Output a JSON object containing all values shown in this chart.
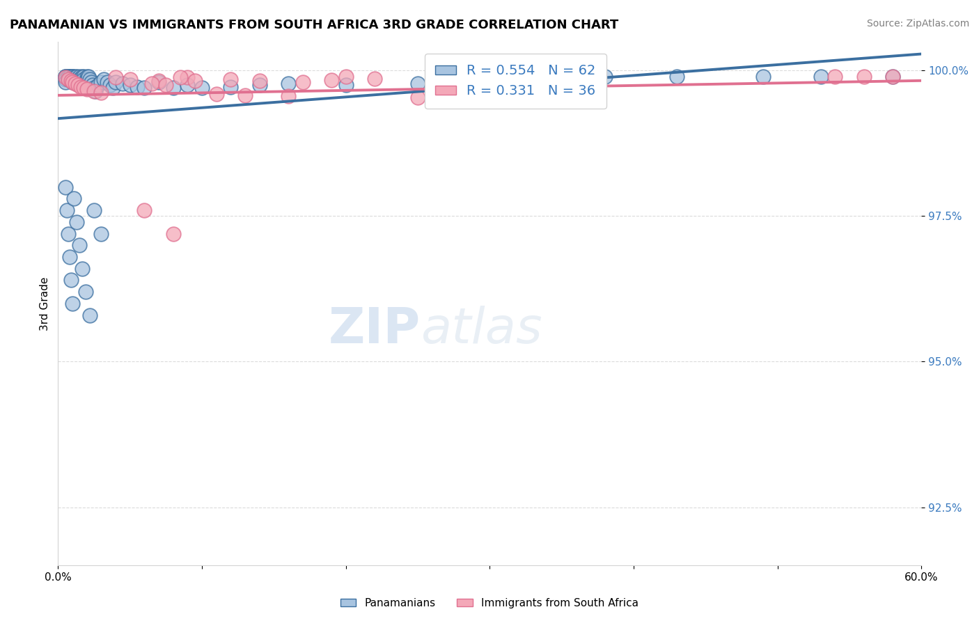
{
  "title": "PANAMANIAN VS IMMIGRANTS FROM SOUTH AFRICA 3RD GRADE CORRELATION CHART",
  "source_text": "Source: ZipAtlas.com",
  "ylabel_label": "3rd Grade",
  "x_min": 0.0,
  "x_max": 0.6,
  "y_min": 0.915,
  "y_max": 1.005,
  "y_ticks": [
    0.925,
    0.95,
    0.975,
    1.0
  ],
  "y_tick_labels": [
    "92.5%",
    "95.0%",
    "97.5%",
    "100.0%"
  ],
  "blue_R": 0.554,
  "blue_N": 62,
  "pink_R": 0.331,
  "pink_N": 36,
  "blue_color": "#a8c4e0",
  "pink_color": "#f4a8b8",
  "blue_line_color": "#3b6fa0",
  "pink_line_color": "#e07090",
  "legend_label_blue": "Panamanians",
  "legend_label_pink": "Immigrants from South Africa",
  "blue_scatter_x": [
    0.005,
    0.005,
    0.005,
    0.005,
    0.005,
    0.007,
    0.007,
    0.007,
    0.008,
    0.008,
    0.008,
    0.01,
    0.01,
    0.01,
    0.01,
    0.01,
    0.012,
    0.012,
    0.013,
    0.013,
    0.014,
    0.015,
    0.015,
    0.016,
    0.017,
    0.018,
    0.018,
    0.019,
    0.02,
    0.02,
    0.021,
    0.022,
    0.023,
    0.024,
    0.025,
    0.026,
    0.028,
    0.03,
    0.032,
    0.034,
    0.036,
    0.038,
    0.04,
    0.045,
    0.05,
    0.055,
    0.06,
    0.07,
    0.08,
    0.09,
    0.1,
    0.12,
    0.14,
    0.16,
    0.2,
    0.25,
    0.3,
    0.38,
    0.43,
    0.49,
    0.53,
    0.58
  ],
  "blue_scatter_y": [
    0.999,
    0.999,
    0.999,
    0.9985,
    0.998,
    0.999,
    0.999,
    0.9985,
    0.999,
    0.999,
    0.9985,
    0.999,
    0.999,
    0.999,
    0.9985,
    0.998,
    0.999,
    0.9985,
    0.999,
    0.9985,
    0.998,
    0.999,
    0.9985,
    0.998,
    0.999,
    0.999,
    0.9985,
    0.998,
    0.999,
    0.9985,
    0.999,
    0.9985,
    0.998,
    0.9975,
    0.997,
    0.9965,
    0.9975,
    0.998,
    0.9985,
    0.998,
    0.9975,
    0.997,
    0.998,
    0.9978,
    0.9975,
    0.9972,
    0.997,
    0.998,
    0.997,
    0.9975,
    0.997,
    0.9972,
    0.9975,
    0.9978,
    0.9975,
    0.9978,
    0.9985,
    0.999,
    0.999,
    0.999,
    0.999,
    0.999
  ],
  "blue_scatter_y_low": [
    0.98,
    0.974,
    0.968,
    0.962,
    0.956,
    0.97,
    0.964,
    0.958,
    0.976,
    0.972,
    0.966,
    0.96,
    0.978,
    0.974
  ],
  "pink_scatter_x": [
    0.005,
    0.007,
    0.009,
    0.01,
    0.012,
    0.014,
    0.016,
    0.018,
    0.02,
    0.025,
    0.03,
    0.04,
    0.05,
    0.07,
    0.09,
    0.12,
    0.14,
    0.17,
    0.2,
    0.11,
    0.13,
    0.16,
    0.25,
    0.3,
    0.35,
    0.06,
    0.08,
    0.58,
    0.56,
    0.54,
    0.22,
    0.19,
    0.065,
    0.075,
    0.085,
    0.095
  ],
  "pink_scatter_y": [
    0.9988,
    0.9985,
    0.9982,
    0.998,
    0.9978,
    0.9975,
    0.9972,
    0.997,
    0.9968,
    0.9965,
    0.9962,
    0.9988,
    0.9985,
    0.9982,
    0.9988,
    0.9985,
    0.9982,
    0.998,
    0.999,
    0.996,
    0.9958,
    0.9956,
    0.9954,
    0.9952,
    0.995,
    0.976,
    0.972,
    0.999,
    0.999,
    0.999,
    0.9986,
    0.9984,
    0.9978,
    0.9975,
    0.9988,
    0.9982
  ]
}
